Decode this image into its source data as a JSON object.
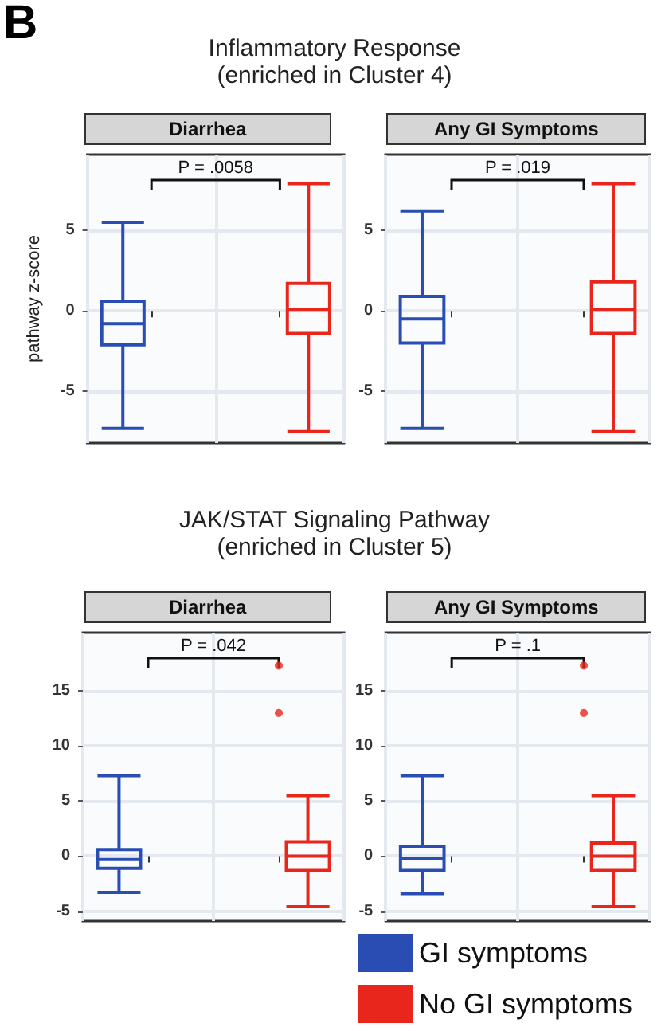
{
  "chart_data": [
    {
      "type": "other",
      "title": "Inflammatory Response",
      "subtitle": "(enriched in Cluster 4)",
      "annotations": [
        "B"
      ]
    },
    {
      "type": "box",
      "title": "Diarrhea",
      "ylabel": "pathway z-score",
      "categories": [
        null,
        null
      ],
      "ylim": [
        -8.2,
        9.7
      ],
      "yticks": [
        -5,
        0,
        5
      ],
      "grid": true,
      "tick_labels": "y",
      "annotations": [
        "P = .0058"
      ],
      "series": [
        {
          "color": "#2a4db3",
          "boxes": [
            {
              "low": -7.3,
              "q1": -2.1,
              "median": -0.8,
              "q3": 0.6,
              "high": 5.5
            },
            null
          ]
        },
        {
          "color": "#e8261c",
          "boxes": [
            null,
            {
              "low": -7.5,
              "q1": -1.4,
              "median": 0.1,
              "q3": 1.7,
              "high": 7.9
            }
          ]
        }
      ]
    },
    {
      "type": "box",
      "title": "Any GI Symptoms",
      "categories": [
        null,
        null
      ],
      "ylim": [
        -8.2,
        9.7
      ],
      "yticks": [
        -5,
        0,
        5
      ],
      "grid": true,
      "tick_labels": "y",
      "annotations": [
        "P = .019"
      ],
      "series": [
        {
          "color": "#2a4db3",
          "boxes": [
            {
              "low": -7.3,
              "q1": -2.0,
              "median": -0.5,
              "q3": 0.9,
              "high": 6.2
            },
            null
          ]
        },
        {
          "color": "#e8261c",
          "boxes": [
            null,
            {
              "low": -7.5,
              "q1": -1.4,
              "median": 0.1,
              "q3": 1.8,
              "high": 7.9
            }
          ]
        }
      ]
    },
    {
      "type": "other",
      "title": "JAK/STAT Signaling Pathway",
      "subtitle": "(enriched in Cluster 5)"
    },
    {
      "type": "box",
      "title": "Diarrhea",
      "categories": [
        null,
        null
      ],
      "ylim": [
        -5.9,
        20.3
      ],
      "yticks": [
        -5,
        0,
        5,
        10,
        15
      ],
      "grid": true,
      "tick_labels": "y",
      "annotations": [
        "P = .042"
      ],
      "series": [
        {
          "color": "#2a4db3",
          "boxes": [
            {
              "low": -3.3,
              "q1": -1.1,
              "median": -0.3,
              "q3": 0.6,
              "high": 7.3
            },
            null
          ]
        },
        {
          "color": "#e8261c",
          "boxes": [
            null,
            {
              "low": -4.6,
              "q1": -1.3,
              "median": 0,
              "q3": 1.3,
              "high": 5.5
            }
          ]
        },
        {
          "type": "scatter",
          "color": "#e8261c",
          "values": [
            null,
            13
          ]
        },
        {
          "type": "scatter",
          "color": "#e8261c",
          "values": [
            null,
            17.3
          ]
        }
      ]
    },
    {
      "type": "box",
      "title": "Any GI Symptoms",
      "categories": [
        null,
        null
      ],
      "ylim": [
        -5.9,
        20.3
      ],
      "yticks": [
        -5,
        0,
        5,
        10,
        15
      ],
      "grid": true,
      "tick_labels": "y",
      "legend": "bottom",
      "annotations": [
        "P = .1"
      ],
      "series": [
        {
          "name": "GI symptoms",
          "color": "#2a4db3",
          "boxes": [
            {
              "low": -3.4,
              "q1": -1.3,
              "median": -0.2,
              "q3": 0.9,
              "high": 7.3
            },
            null
          ]
        },
        {
          "name": "No GI symptoms",
          "color": "#e8261c",
          "boxes": [
            null,
            {
              "low": -4.6,
              "q1": -1.3,
              "median": 0,
              "q3": 1.2,
              "high": 5.5
            }
          ]
        },
        {
          "type": "scatter",
          "color": "#e8261c",
          "values": [
            null,
            13
          ]
        },
        {
          "type": "scatter",
          "color": "#e8261c",
          "values": [
            null,
            17.3
          ]
        }
      ]
    }
  ]
}
